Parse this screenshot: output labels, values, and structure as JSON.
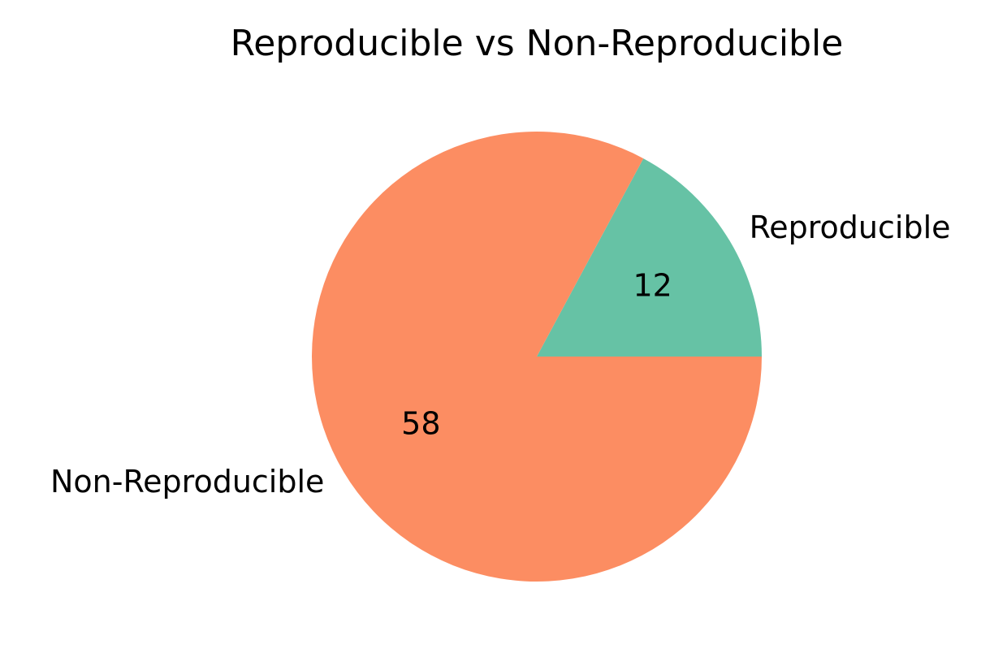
{
  "chart_data": {
    "type": "pie",
    "title": "Reproducible vs Non-Reproducible",
    "slices": [
      {
        "label": "Reproducible",
        "value": 12,
        "color": "#66c2a5"
      },
      {
        "label": "Non-Reproducible",
        "value": 58,
        "color": "#fc8d62"
      }
    ],
    "start_angle_deg": 0,
    "direction": "counterclockwise",
    "legend": "none"
  }
}
